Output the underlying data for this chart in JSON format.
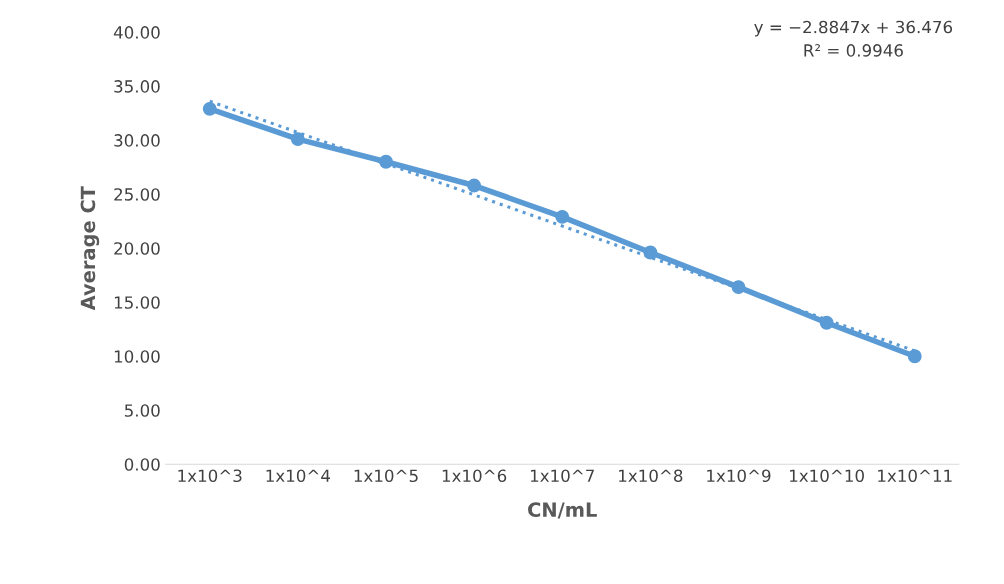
{
  "chart_data": {
    "type": "line",
    "xlabel": "CN/mL",
    "ylabel": "Average CT",
    "categories": [
      "1x10^3",
      "1x10^4",
      "1x10^5",
      "1x10^6",
      "1x10^7",
      "1x10^8",
      "1x10^9",
      "1x10^10",
      "1x10^11"
    ],
    "series": [
      {
        "color": "#5b9bd5",
        "marker": "circle",
        "line_style": "solid",
        "values": [
          32.9,
          30.1,
          28.0,
          25.8,
          22.9,
          19.6,
          16.4,
          13.1,
          10.0
        ]
      },
      {
        "type": "line",
        "color": "#5b9bd5",
        "marker": "none",
        "line_style": "dotted",
        "x": [
          "1x10^3",
          "1x10^11"
        ],
        "values": [
          33.6,
          10.5
        ]
      }
    ],
    "ylim": [
      0,
      40
    ],
    "yticks": [
      {
        "value": 0,
        "label": "0.00"
      },
      {
        "value": 5,
        "label": "5.00"
      },
      {
        "value": 10,
        "label": "10.00"
      },
      {
        "value": 15,
        "label": "15.00"
      },
      {
        "value": 20,
        "label": "20.00"
      },
      {
        "value": 25,
        "label": "25.00"
      },
      {
        "value": 30,
        "label": "30.00"
      },
      {
        "value": 35,
        "label": "35.00"
      },
      {
        "value": 40,
        "label": "40.00"
      }
    ],
    "annotations": [
      "y = −2.8847x + 36.476",
      "R² = 0.9946"
    ],
    "grid": false,
    "legend": false
  }
}
